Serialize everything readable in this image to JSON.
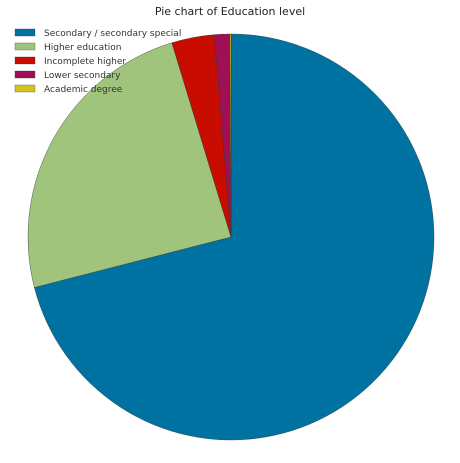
{
  "chart_data": {
    "type": "pie",
    "title": "Pie chart of Education level",
    "labels": [
      "Secondary / secondary special",
      "Higher education",
      "Incomplete higher",
      "Lower secondary",
      "Academic degree"
    ],
    "values": [
      71.0,
      24.3,
      3.4,
      1.2,
      0.1
    ],
    "colors": [
      "#0072a1",
      "#a0c47b",
      "#c80c00",
      "#9e0f55",
      "#d6c21f"
    ],
    "start_angle_deg": 90,
    "direction": "clockwise",
    "legend_position": "top-left"
  }
}
